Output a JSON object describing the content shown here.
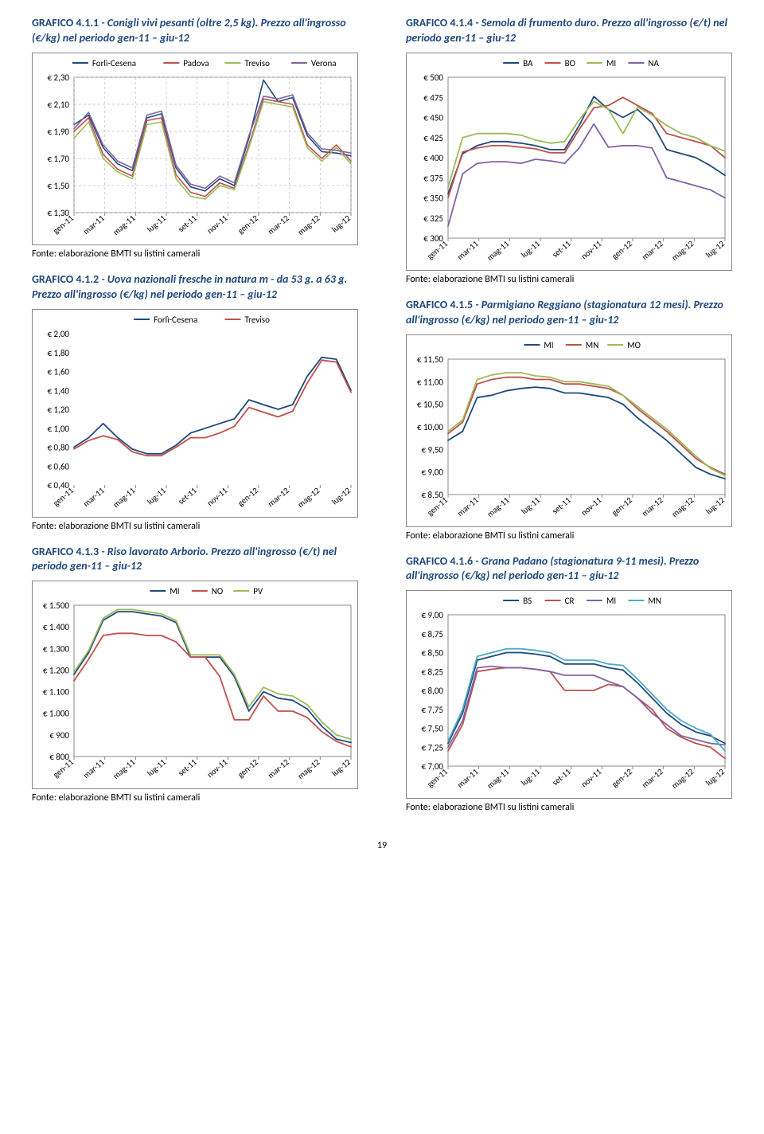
{
  "page_number": "19",
  "source_label": "Fonte: elaborazione BMTI su listini camerali",
  "months": [
    "gen-11",
    "mar-11",
    "mag-11",
    "lug-11",
    "set-11",
    "nov-11",
    "gen-12",
    "mar-12",
    "mag-12",
    "lug-12"
  ],
  "charts": {
    "c1": {
      "title_bold": "GRAFICO 4.1.1",
      "title_rest": " - Conigli vivi pesanti (oltre 2,5 kg). Prezzo all'ingrosso (€/kg) nel periodo gen-11 – giu-12",
      "yticks": [
        "€ 2,30",
        "€ 2,10",
        "€ 1,90",
        "€ 1,70",
        "€ 1,50",
        "€ 1,30"
      ],
      "ylim": [
        1.3,
        2.3
      ],
      "grid": true,
      "grid_color": "#bfbfbf",
      "grid_dash": "3,3",
      "plotbg": "#ffffff",
      "border": true,
      "tick_fontsize": 11,
      "legend_pos": "top",
      "series": [
        {
          "label": "Forlì-Cesena",
          "color": "#1f497d",
          "width": 1.6,
          "y": [
            1.95,
            2.02,
            1.78,
            1.66,
            1.61,
            2.0,
            2.03,
            1.63,
            1.49,
            1.46,
            1.55,
            1.5,
            1.85,
            2.28,
            2.12,
            2.15,
            1.87,
            1.75,
            1.74,
            1.72
          ]
        },
        {
          "label": "Padova",
          "color": "#c0504d",
          "width": 1.6,
          "y": [
            1.9,
            2.0,
            1.73,
            1.62,
            1.57,
            1.98,
            2.0,
            1.58,
            1.45,
            1.42,
            1.52,
            1.48,
            1.8,
            2.14,
            2.12,
            2.1,
            1.8,
            1.7,
            1.8,
            1.68
          ]
        },
        {
          "label": "Treviso",
          "color": "#9bbb59",
          "width": 1.6,
          "y": [
            1.85,
            1.97,
            1.7,
            1.6,
            1.55,
            1.95,
            1.97,
            1.55,
            1.42,
            1.4,
            1.5,
            1.47,
            1.78,
            2.12,
            2.1,
            2.08,
            1.78,
            1.68,
            1.78,
            1.66
          ]
        },
        {
          "label": "Verona",
          "color": "#8064a2",
          "width": 1.6,
          "y": [
            1.92,
            2.04,
            1.8,
            1.68,
            1.63,
            2.02,
            2.05,
            1.65,
            1.51,
            1.48,
            1.57,
            1.52,
            1.87,
            2.16,
            2.14,
            2.17,
            1.89,
            1.77,
            1.76,
            1.74
          ]
        }
      ]
    },
    "c2": {
      "title_bold": "GRAFICO 4.1.2",
      "title_rest": " - Uova nazionali fresche in natura m - da 53 g. a 63 g. Prezzo all'ingrosso (€/kg) nel periodo gen-11 – giu-12",
      "yticks": [
        "€ 2,00",
        "€ 1,80",
        "€ 1,60",
        "€ 1,40",
        "€ 1,20",
        "€ 1,00",
        "€ 0,80",
        "€ 0,60",
        "€ 0,40"
      ],
      "ylim": [
        0.4,
        2.0
      ],
      "grid": false,
      "plotbg": "#ffffff",
      "border": false,
      "tick_fontsize": 11,
      "legend_pos": "top",
      "series": [
        {
          "label": "Forlì-Cesena",
          "color": "#1f497d",
          "width": 1.8,
          "y": [
            0.8,
            0.9,
            1.05,
            0.9,
            0.78,
            0.73,
            0.73,
            0.82,
            0.95,
            1.0,
            1.05,
            1.1,
            1.3,
            1.25,
            1.2,
            1.25,
            1.55,
            1.75,
            1.73,
            1.4
          ]
        },
        {
          "label": "Treviso",
          "color": "#c0504d",
          "width": 1.8,
          "y": [
            0.78,
            0.87,
            0.92,
            0.88,
            0.75,
            0.71,
            0.71,
            0.8,
            0.9,
            0.9,
            0.95,
            1.02,
            1.22,
            1.17,
            1.12,
            1.18,
            1.48,
            1.72,
            1.7,
            1.38
          ]
        }
      ]
    },
    "c3": {
      "title_bold": "GRAFICO 4.1.3",
      "title_rest": " - Riso lavorato Arborio. Prezzo all'ingrosso (€/t) nel periodo gen-11 – giu-12",
      "yticks": [
        "€ 1.500",
        "€ 1.400",
        "€ 1.300",
        "€ 1.200",
        "€ 1.100",
        "€ 1.000",
        "€ 900",
        "€ 800"
      ],
      "ylim": [
        800,
        1500
      ],
      "grid": false,
      "plotbg": "#ffffff",
      "border": true,
      "tick_fontsize": 11,
      "legend_pos": "top",
      "series": [
        {
          "label": "MI",
          "color": "#1f497d",
          "width": 1.8,
          "y": [
            1180,
            1280,
            1430,
            1470,
            1470,
            1460,
            1450,
            1420,
            1260,
            1260,
            1260,
            1170,
            1010,
            1100,
            1070,
            1060,
            1020,
            940,
            880,
            865
          ]
        },
        {
          "label": "NO",
          "color": "#c0504d",
          "width": 1.8,
          "y": [
            1150,
            1250,
            1360,
            1370,
            1370,
            1360,
            1360,
            1330,
            1260,
            1260,
            1170,
            970,
            970,
            1080,
            1010,
            1010,
            980,
            915,
            870,
            845
          ]
        },
        {
          "label": "PV",
          "color": "#9bbb59",
          "width": 1.8,
          "y": [
            1190,
            1290,
            1440,
            1480,
            1480,
            1470,
            1460,
            1430,
            1270,
            1270,
            1270,
            1180,
            1030,
            1120,
            1090,
            1080,
            1040,
            960,
            900,
            880
          ]
        }
      ]
    },
    "c4": {
      "title_bold": "GRAFICO 4.1.4",
      "title_rest": " - Semola di frumento duro. Prezzo all'ingrosso (€/t) nel periodo gen-11 – giu-12",
      "yticks": [
        "€ 500",
        "€ 475",
        "€ 450",
        "€ 425",
        "€ 400",
        "€ 375",
        "€ 350",
        "€ 325",
        "€ 300"
      ],
      "ylim": [
        300,
        500
      ],
      "grid": false,
      "plotbg": "#ffffff",
      "border": true,
      "tick_fontsize": 11,
      "legend_pos": "top",
      "series": [
        {
          "label": "BA",
          "color": "#1f497d",
          "width": 1.8,
          "y": [
            355,
            405,
            415,
            420,
            420,
            418,
            415,
            410,
            410,
            440,
            476,
            460,
            450,
            460,
            443,
            410,
            405,
            400,
            390,
            378
          ]
        },
        {
          "label": "BO",
          "color": "#c0504d",
          "width": 1.8,
          "y": [
            350,
            407,
            412,
            415,
            415,
            413,
            411,
            406,
            406,
            435,
            462,
            465,
            475,
            465,
            455,
            430,
            425,
            420,
            415,
            400
          ]
        },
        {
          "label": "MI",
          "color": "#9bbb59",
          "width": 1.8,
          "y": [
            363,
            425,
            430,
            430,
            430,
            428,
            422,
            418,
            420,
            447,
            470,
            460,
            430,
            463,
            453,
            440,
            430,
            425,
            415,
            408
          ]
        },
        {
          "label": "NA",
          "color": "#8064a2",
          "width": 1.8,
          "y": [
            315,
            380,
            393,
            395,
            395,
            393,
            398,
            396,
            393,
            412,
            442,
            413,
            415,
            415,
            412,
            375,
            370,
            365,
            360,
            350
          ]
        }
      ]
    },
    "c5": {
      "title_bold": "GRAFICO 4.1.5",
      "title_rest": " - Parmigiano Reggiano (stagionatura 12 mesi). Prezzo all'ingrosso (€/kg) nel periodo gen-11 – giu-12",
      "yticks": [
        "€ 11,50",
        "€ 11,00",
        "€ 10,50",
        "€ 10,00",
        "€ 9,50",
        "€ 9,00",
        "€ 8,50"
      ],
      "ylim": [
        8.5,
        11.5
      ],
      "grid": false,
      "plotbg": "#ffffff",
      "border": true,
      "tick_fontsize": 11,
      "legend_pos": "top",
      "series": [
        {
          "label": "MI",
          "color": "#1f497d",
          "width": 1.8,
          "y": [
            9.7,
            9.9,
            10.65,
            10.7,
            10.8,
            10.85,
            10.88,
            10.85,
            10.75,
            10.75,
            10.7,
            10.65,
            10.5,
            10.2,
            9.95,
            9.7,
            9.4,
            9.1,
            8.95,
            8.85
          ]
        },
        {
          "label": "MN",
          "color": "#c0504d",
          "width": 1.8,
          "y": [
            9.85,
            10.1,
            10.95,
            11.05,
            11.1,
            11.1,
            11.05,
            11.05,
            10.95,
            10.95,
            10.9,
            10.85,
            10.7,
            10.4,
            10.15,
            9.9,
            9.6,
            9.3,
            9.1,
            8.95
          ]
        },
        {
          "label": "MO",
          "color": "#9bbb59",
          "width": 1.8,
          "y": [
            9.9,
            10.15,
            11.05,
            11.15,
            11.2,
            11.2,
            11.13,
            11.1,
            11.0,
            11.0,
            10.95,
            10.9,
            10.7,
            10.45,
            10.2,
            9.95,
            9.65,
            9.35,
            9.08,
            8.92
          ]
        }
      ]
    },
    "c6": {
      "title_bold": "GRAFICO 4.1.6",
      "title_rest": " - Grana Padano (stagionatura 9-11 mesi). Prezzo all'ingrosso (€/kg) nel periodo gen-11 – giu-12",
      "yticks": [
        "€ 9,00",
        "€ 8,75",
        "€ 8,50",
        "€ 8,25",
        "€ 8,00",
        "€ 7,75",
        "€ 7,50",
        "€ 7,25",
        "€ 7,00"
      ],
      "ylim": [
        7.0,
        9.0
      ],
      "grid": false,
      "plotbg": "#ffffff",
      "border": true,
      "tick_fontsize": 11,
      "legend_pos": "top",
      "series": [
        {
          "label": "BS",
          "color": "#1f497d",
          "width": 1.8,
          "y": [
            7.3,
            7.7,
            8.4,
            8.45,
            8.5,
            8.5,
            8.48,
            8.45,
            8.35,
            8.35,
            8.35,
            8.3,
            8.27,
            8.1,
            7.9,
            7.7,
            7.55,
            7.45,
            7.4,
            7.3
          ]
        },
        {
          "label": "CR",
          "color": "#c0504d",
          "width": 1.8,
          "y": [
            7.2,
            7.55,
            8.25,
            8.28,
            8.3,
            8.3,
            8.28,
            8.25,
            8.0,
            8.0,
            8.0,
            8.08,
            8.05,
            7.9,
            7.75,
            7.5,
            7.38,
            7.3,
            7.25,
            7.1
          ]
        },
        {
          "label": "MI",
          "color": "#8064a2",
          "width": 1.8,
          "y": [
            7.25,
            7.6,
            8.3,
            8.32,
            8.3,
            8.3,
            8.28,
            8.25,
            8.2,
            8.2,
            8.2,
            8.12,
            8.05,
            7.9,
            7.7,
            7.55,
            7.4,
            7.35,
            7.3,
            7.28
          ]
        },
        {
          "label": "MN",
          "color": "#4bacc6",
          "width": 1.8,
          "y": [
            7.33,
            7.75,
            8.45,
            8.5,
            8.55,
            8.55,
            8.53,
            8.5,
            8.4,
            8.4,
            8.4,
            8.35,
            8.33,
            8.15,
            7.95,
            7.75,
            7.6,
            7.5,
            7.42,
            7.2
          ]
        }
      ]
    }
  }
}
